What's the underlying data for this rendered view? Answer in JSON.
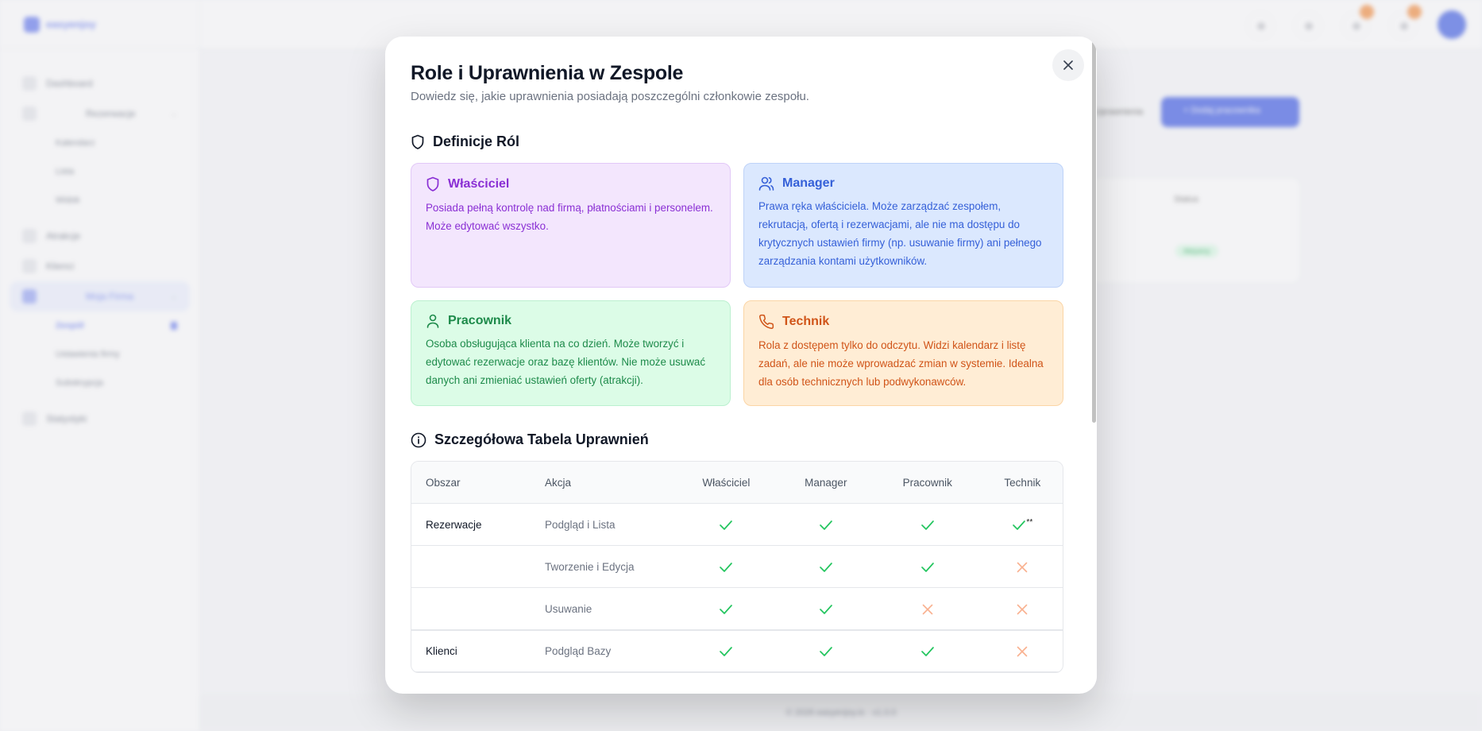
{
  "app": {
    "brand": "easyenjoy",
    "sidebar": {
      "items": [
        {
          "label": "Dashboard"
        },
        {
          "label": "Rezerwacje",
          "children": [
            "Kalendarz",
            "Lista",
            "Widok"
          ]
        },
        {
          "label": "Atrakcje"
        },
        {
          "label": "Klienci"
        },
        {
          "label": "Moja Firma",
          "active": true,
          "children": [
            "Zespół",
            "Ustawienia firmy",
            "Subskrypcja"
          ]
        },
        {
          "label": "Statystyki"
        }
      ]
    },
    "page": {
      "secondary_link": "Uprawnienia",
      "primary_button": "+ Dodaj pracownika",
      "table_status_header": "Status",
      "status_badge": "Aktywny"
    },
    "footer": "© 2026 easyenjoy.io · v1.0.0"
  },
  "modal": {
    "title": "Role i Uprawnienia w Zespole",
    "subtitle": "Dowiedz się, jakie uprawnienia posiadają poszczególni członkowie zespołu.",
    "roles_heading": "Definicje Ról",
    "roles": [
      {
        "name": "Właściciel",
        "icon": "shield-icon",
        "color": "#8a2fd4",
        "description": "Posiada pełną kontrolę nad firmą, płatnościami i personelem. Może edytować wszystko."
      },
      {
        "name": "Manager",
        "icon": "users-icon",
        "color": "#3560d8",
        "description": "Prawa ręka właściciela. Może zarządzać zespołem, rekrutacją, ofertą i rezerwacjami, ale nie ma dostępu do krytycznych ustawień firmy (np. usuwanie firmy) ani pełnego zarządzania kontami użytkowników."
      },
      {
        "name": "Pracownik",
        "icon": "user-icon",
        "color": "#1d8a4a",
        "description": "Osoba obsługująca klienta na co dzień. Może tworzyć i edytować rezerwacje oraz bazę klientów. Nie może usuwać danych ani zmieniać ustawień oferty (atrakcji)."
      },
      {
        "name": "Technik",
        "icon": "phone-icon",
        "color": "#d05418",
        "description": "Rola z dostępem tylko do odczytu. Widzi kalendarz i listę zadań, ale nie może wprowadzać zmian w systemie. Idealna dla osób technicznych lub podwykonawców."
      }
    ],
    "table_heading": "Szczegółowa Tabela Uprawnień",
    "table": {
      "headers": [
        "Obszar",
        "Akcja",
        "Właściciel",
        "Manager",
        "Pracownik",
        "Technik"
      ],
      "rows": [
        {
          "area": "Rezerwacje",
          "action": "Podgląd i Lista",
          "perms": [
            true,
            true,
            true,
            true
          ],
          "note": "**"
        },
        {
          "area": "",
          "action": "Tworzenie i Edycja",
          "perms": [
            true,
            true,
            true,
            false
          ]
        },
        {
          "area": "",
          "action": "Usuwanie",
          "perms": [
            true,
            true,
            false,
            false
          ]
        },
        {
          "area": "Klienci",
          "action": "Podgląd Bazy",
          "perms": [
            true,
            true,
            true,
            false
          ]
        }
      ]
    },
    "colors": {
      "allowed": "#22c55e",
      "denied": "#f9b08f"
    }
  }
}
